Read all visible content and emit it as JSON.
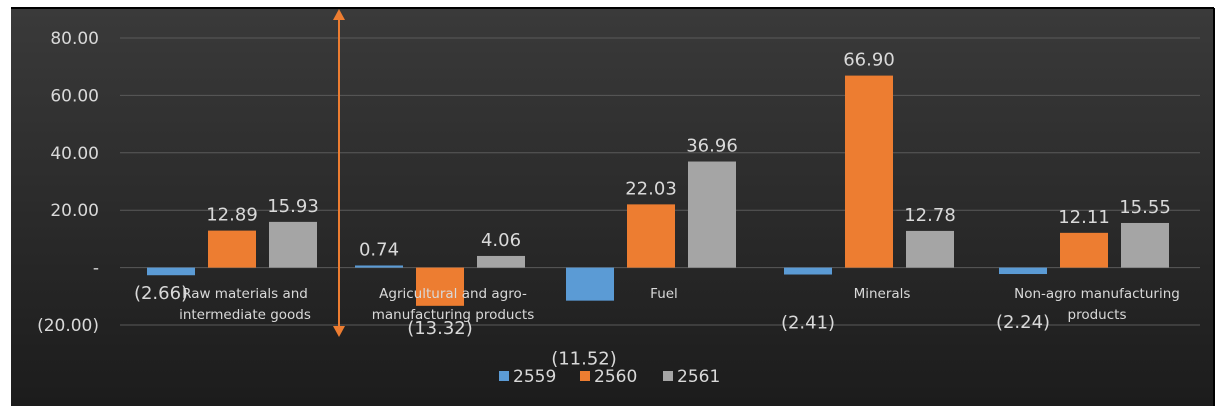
{
  "chart_data": {
    "type": "bar",
    "categories": [
      [
        "Raw materials and",
        "intermediate goods"
      ],
      [
        "Agricultural and agro-",
        "manufacturing products"
      ],
      [
        "Fuel"
      ],
      [
        "Minerals"
      ],
      [
        "Non-agro manufacturing",
        "products"
      ]
    ],
    "series": [
      {
        "name": "2559",
        "color": "#5b9bd5",
        "values": [
          -2.66,
          0.74,
          -11.52,
          -2.41,
          -2.24
        ],
        "labels": [
          "(2.66)",
          "0.74",
          "(11.52)",
          "(2.41)",
          "(2.24)"
        ]
      },
      {
        "name": "2560",
        "color": "#ed7d31",
        "values": [
          12.89,
          -13.32,
          22.03,
          66.9,
          12.11
        ],
        "labels": [
          "12.89",
          "(13.32)",
          "22.03",
          "66.90",
          "12.11"
        ]
      },
      {
        "name": "2561",
        "color": "#a5a5a5",
        "values": [
          15.93,
          4.06,
          36.96,
          12.78,
          15.55
        ],
        "labels": [
          "15.93",
          "4.06",
          "36.96",
          "12.78",
          "15.55"
        ]
      }
    ],
    "ylim": [
      -20,
      80
    ],
    "yticks": [
      80,
      60,
      40,
      20,
      0,
      -20
    ],
    "ytick_labels": [
      "80.00",
      "60.00",
      "40.00",
      "20.00",
      "-",
      "(20.00)"
    ],
    "grid": true,
    "legend": "bottom",
    "title": "",
    "xlabel": "",
    "ylabel": ""
  },
  "colors": {
    "background_top": "#3a3a3a",
    "background_bottom": "#1c1c1c",
    "arrow": "#ed7d31",
    "grid": "#5a5a5a"
  }
}
